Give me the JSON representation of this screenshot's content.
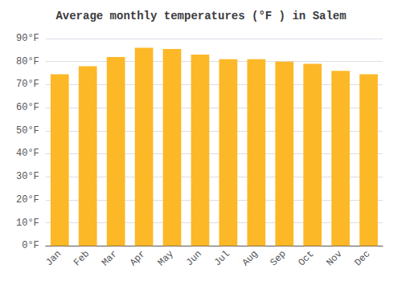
{
  "chart_data": {
    "type": "bar",
    "title": "Average monthly temperatures (°F ) in Salem",
    "categories": [
      "Jan",
      "Feb",
      "Mar",
      "Apr",
      "May",
      "Jun",
      "Jul",
      "Aug",
      "Sep",
      "Oct",
      "Nov",
      "Dec"
    ],
    "values": [
      74.5,
      78.0,
      82.0,
      86.0,
      85.5,
      83.0,
      81.0,
      81.0,
      80.0,
      79.0,
      76.0,
      74.5
    ],
    "color": "#FDB827",
    "ylim": [
      0,
      90
    ],
    "yticks": [
      {
        "value": 0,
        "label": "0°F"
      },
      {
        "value": 10,
        "label": "10°F"
      },
      {
        "value": 20,
        "label": "20°F"
      },
      {
        "value": 30,
        "label": "30°F"
      },
      {
        "value": 40,
        "label": "40°F"
      },
      {
        "value": 50,
        "label": "50°F"
      },
      {
        "value": 60,
        "label": "60°F"
      },
      {
        "value": 70,
        "label": "70°F"
      },
      {
        "value": 80,
        "label": "80°F"
      },
      {
        "value": 90,
        "label": "90°F"
      }
    ],
    "grid": true
  }
}
